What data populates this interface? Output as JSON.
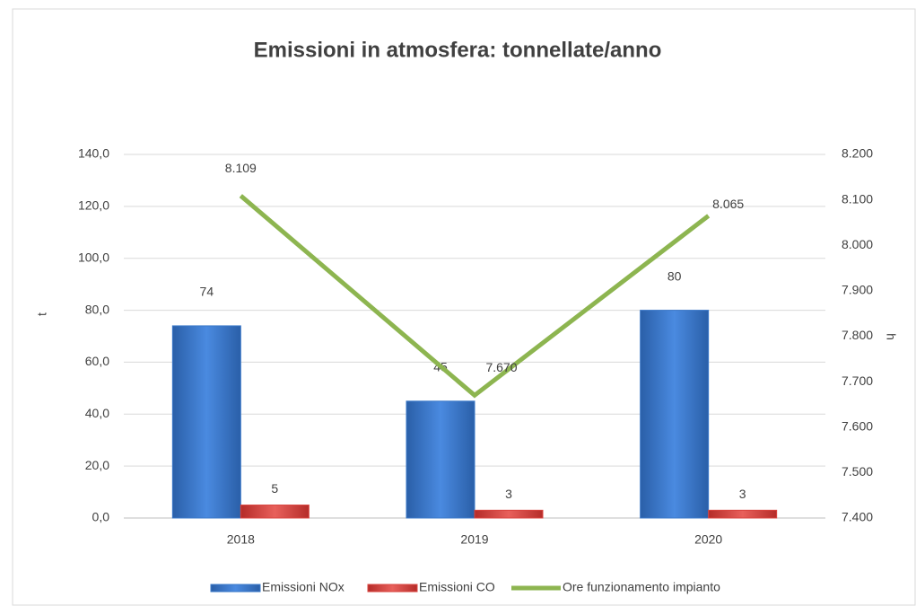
{
  "chart_data": {
    "type": "bar",
    "title": "Emissioni in atmosfera: tonnellate/anno",
    "categories": [
      "2018",
      "2019",
      "2020"
    ],
    "ylabel": "t",
    "y2label": "h",
    "ylim": [
      0,
      140
    ],
    "yticks": [
      {
        "value": 0,
        "label": "0,0"
      },
      {
        "value": 20,
        "label": "20,0"
      },
      {
        "value": 40,
        "label": "40,0"
      },
      {
        "value": 60,
        "label": "60,0"
      },
      {
        "value": 80,
        "label": "80,0"
      },
      {
        "value": 100,
        "label": "100,0"
      },
      {
        "value": 120,
        "label": "120,0"
      },
      {
        "value": 140,
        "label": "140,0"
      }
    ],
    "y2lim": [
      7400,
      8200
    ],
    "y2ticks": [
      {
        "value": 7400,
        "label": "7.400"
      },
      {
        "value": 7500,
        "label": "7.500"
      },
      {
        "value": 7600,
        "label": "7.600"
      },
      {
        "value": 7700,
        "label": "7.700"
      },
      {
        "value": 7800,
        "label": "7.800"
      },
      {
        "value": 7900,
        "label": "7.900"
      },
      {
        "value": 8000,
        "label": "8.000"
      },
      {
        "value": 8100,
        "label": "8.100"
      },
      {
        "value": 8200,
        "label": "8.200"
      }
    ],
    "grid": true,
    "legend": "bottom",
    "series": [
      {
        "name": "Emissioni NOx",
        "type": "bar",
        "color": "#3a78c9",
        "values": [
          74,
          45,
          80
        ]
      },
      {
        "name": "Emissioni CO",
        "type": "bar",
        "color": "#d9443f",
        "values": [
          5,
          3,
          3
        ]
      },
      {
        "name": "Ore funzionamento impianto",
        "type": "line",
        "axis": "y2",
        "color": "#8db550",
        "values": [
          8109,
          7670,
          8065
        ],
        "value_labels": [
          "8.109",
          "7.670",
          "8.065"
        ]
      }
    ]
  }
}
